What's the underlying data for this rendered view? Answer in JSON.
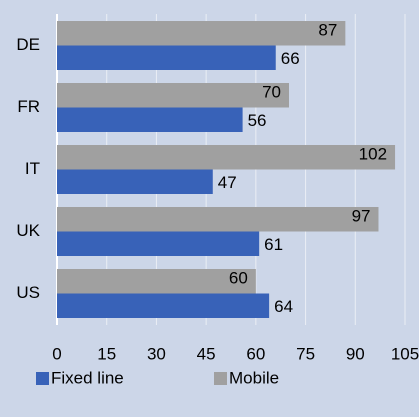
{
  "chart_data": {
    "type": "barh",
    "categories": [
      "DE",
      "FR",
      "IT",
      "UK",
      "US"
    ],
    "series": [
      {
        "name": "Mobile",
        "color": "#a0a0a0",
        "values": [
          87,
          70,
          102,
          97,
          60
        ]
      },
      {
        "name": "Fixed line",
        "color": "#3862b8",
        "values": [
          66,
          56,
          47,
          61,
          64
        ]
      }
    ],
    "xlim": [
      0,
      105
    ],
    "xticks": [
      0,
      15,
      30,
      45,
      60,
      75,
      90,
      105
    ],
    "grid": true,
    "legend": "bottom"
  }
}
